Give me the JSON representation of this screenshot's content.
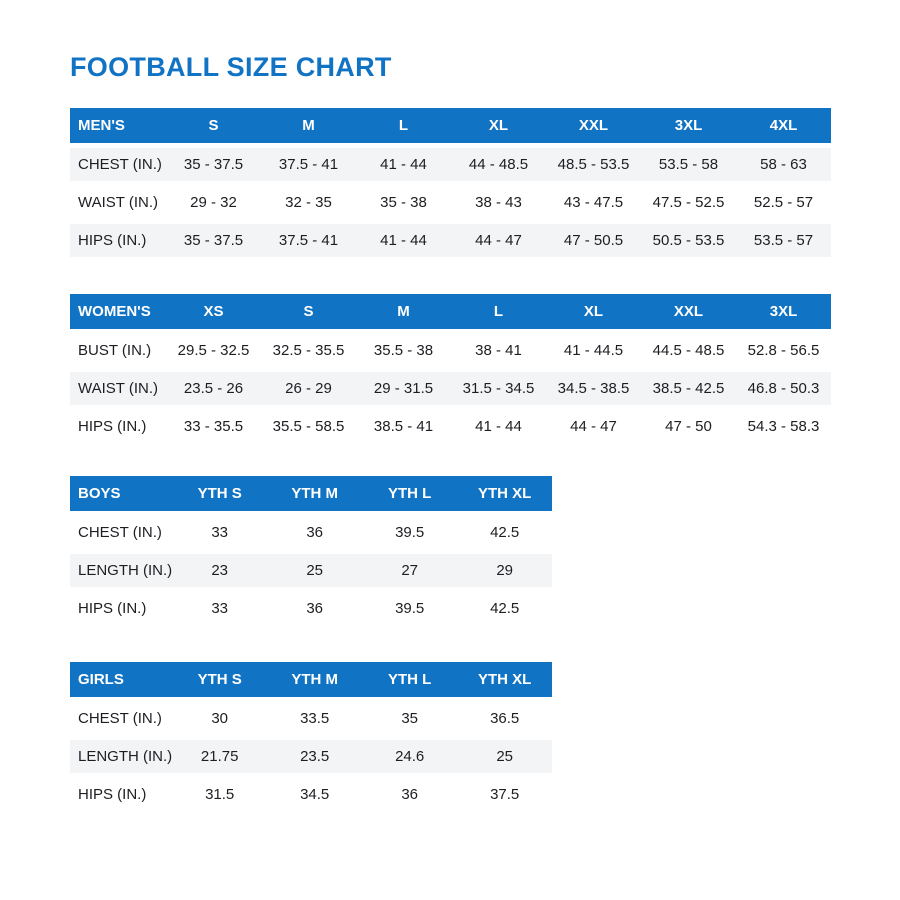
{
  "title": "FOOTBALL SIZE CHART",
  "colors": {
    "accent_blue": "#1173c4",
    "header_text": "#ffffff",
    "stripe_bg": "#f3f4f6",
    "body_text": "#1c1e21",
    "page_bg": "#ffffff"
  },
  "tables": [
    {
      "name": "MEN'S",
      "sizes": [
        "S",
        "M",
        "L",
        "XL",
        "XXL",
        "3XL",
        "4XL"
      ],
      "rows": [
        {
          "label": "CHEST (IN.)",
          "values": [
            "35 - 37.5",
            "37.5 - 41",
            "41 - 44",
            "44 - 48.5",
            "48.5 - 53.5",
            "53.5 - 58",
            "58 - 63"
          ]
        },
        {
          "label": "WAIST (IN.)",
          "values": [
            "29 - 32",
            "32 - 35",
            "35 - 38",
            "38 - 43",
            "43 - 47.5",
            "47.5 - 52.5",
            "52.5 - 57"
          ]
        },
        {
          "label": "HIPS (IN.)",
          "values": [
            "35 - 37.5",
            "37.5 - 41",
            "41 - 44",
            "44 - 47",
            "47 - 50.5",
            "50.5 - 53.5",
            "53.5 - 57"
          ]
        }
      ]
    },
    {
      "name": "WOMEN'S",
      "sizes": [
        "XS",
        "S",
        "M",
        "L",
        "XL",
        "XXL",
        "3XL"
      ],
      "rows": [
        {
          "label": "BUST (IN.)",
          "values": [
            "29.5 - 32.5",
            "32.5 - 35.5",
            "35.5 - 38",
            "38 - 41",
            "41 - 44.5",
            "44.5 - 48.5",
            "52.8 - 56.5"
          ]
        },
        {
          "label": "WAIST (IN.)",
          "values": [
            "23.5 - 26",
            "26 - 29",
            "29 - 31.5",
            "31.5 - 34.5",
            "34.5 - 38.5",
            "38.5 - 42.5",
            "46.8 - 50.3"
          ]
        },
        {
          "label": "HIPS (IN.)",
          "values": [
            "33 - 35.5",
            "35.5 - 58.5",
            "38.5 - 41",
            "41 - 44",
            "44 - 47",
            "47 - 50",
            "54.3 - 58.3"
          ]
        }
      ]
    },
    {
      "name": "BOYS",
      "sizes": [
        "YTH S",
        "YTH M",
        "YTH L",
        "YTH XL"
      ],
      "rows": [
        {
          "label": "CHEST (IN.)",
          "values": [
            "33",
            "36",
            "39.5",
            "42.5"
          ]
        },
        {
          "label": "LENGTH (IN.)",
          "values": [
            "23",
            "25",
            "27",
            "29"
          ]
        },
        {
          "label": "HIPS (IN.)",
          "values": [
            "33",
            "36",
            "39.5",
            "42.5"
          ]
        }
      ]
    },
    {
      "name": "GIRLS",
      "sizes": [
        "YTH S",
        "YTH M",
        "YTH L",
        "YTH XL"
      ],
      "rows": [
        {
          "label": "CHEST (IN.)",
          "values": [
            "30",
            "33.5",
            "35",
            "36.5"
          ]
        },
        {
          "label": "LENGTH (IN.)",
          "values": [
            "21.75",
            "23.5",
            "24.6",
            "25"
          ]
        },
        {
          "label": "HIPS (IN.)",
          "values": [
            "31.5",
            "34.5",
            "36",
            "37.5"
          ]
        }
      ]
    }
  ],
  "chart_data": [
    {
      "type": "table",
      "title": "MEN'S",
      "columns": [
        "MEN'S",
        "S",
        "M",
        "L",
        "XL",
        "XXL",
        "3XL",
        "4XL"
      ],
      "rows": [
        [
          "CHEST (IN.)",
          "35 - 37.5",
          "37.5 - 41",
          "41 - 44",
          "44 - 48.5",
          "48.5 - 53.5",
          "53.5 - 58",
          "58 - 63"
        ],
        [
          "WAIST (IN.)",
          "29 - 32",
          "32 - 35",
          "35 - 38",
          "38 - 43",
          "43 - 47.5",
          "47.5 - 52.5",
          "52.5 - 57"
        ],
        [
          "HIPS (IN.)",
          "35 - 37.5",
          "37.5 - 41",
          "41 - 44",
          "44 - 47",
          "47 - 50.5",
          "50.5 - 53.5",
          "53.5 - 57"
        ]
      ]
    },
    {
      "type": "table",
      "title": "WOMEN'S",
      "columns": [
        "WOMEN'S",
        "XS",
        "S",
        "M",
        "L",
        "XL",
        "XXL",
        "3XL"
      ],
      "rows": [
        [
          "BUST (IN.)",
          "29.5 - 32.5",
          "32.5 - 35.5",
          "35.5 - 38",
          "38 - 41",
          "41 - 44.5",
          "44.5 - 48.5",
          "52.8 - 56.5"
        ],
        [
          "WAIST (IN.)",
          "23.5 - 26",
          "26 - 29",
          "29 - 31.5",
          "31.5 - 34.5",
          "34.5 - 38.5",
          "38.5 - 42.5",
          "46.8 - 50.3"
        ],
        [
          "HIPS (IN.)",
          "33 - 35.5",
          "35.5 - 58.5",
          "38.5 - 41",
          "41 - 44",
          "44 - 47",
          "47 - 50",
          "54.3 - 58.3"
        ]
      ]
    },
    {
      "type": "table",
      "title": "BOYS",
      "columns": [
        "BOYS",
        "YTH S",
        "YTH M",
        "YTH L",
        "YTH XL"
      ],
      "rows": [
        [
          "CHEST (IN.)",
          "33",
          "36",
          "39.5",
          "42.5"
        ],
        [
          "LENGTH (IN.)",
          "23",
          "25",
          "27",
          "29"
        ],
        [
          "HIPS (IN.)",
          "33",
          "36",
          "39.5",
          "42.5"
        ]
      ]
    },
    {
      "type": "table",
      "title": "GIRLS",
      "columns": [
        "GIRLS",
        "YTH S",
        "YTH M",
        "YTH L",
        "YTH XL"
      ],
      "rows": [
        [
          "CHEST (IN.)",
          "30",
          "33.5",
          "35",
          "36.5"
        ],
        [
          "LENGTH (IN.)",
          "21.75",
          "23.5",
          "24.6",
          "25"
        ],
        [
          "HIPS (IN.)",
          "31.5",
          "34.5",
          "36",
          "37.5"
        ]
      ]
    }
  ]
}
